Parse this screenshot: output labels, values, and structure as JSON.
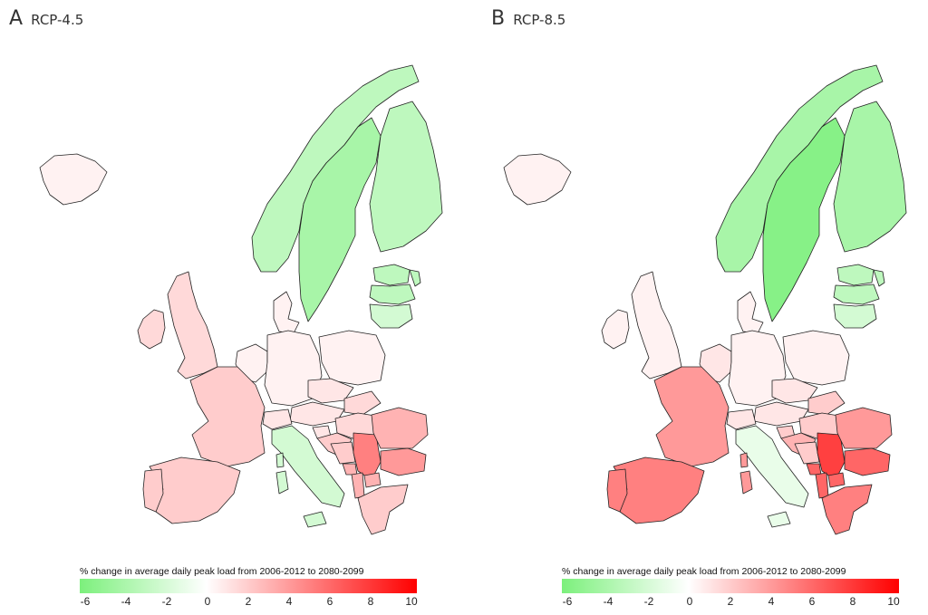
{
  "panels": [
    {
      "letter": "A",
      "title": "RCP-4.5",
      "regions": {
        "iceland": 0.5,
        "ireland": 1.5,
        "uk": 1.5,
        "norway": -3,
        "sweden": -4,
        "finland": -3,
        "baltics": -3,
        "estonia": -3,
        "latvia": -3,
        "lithuania": -2,
        "denmark": 0.5,
        "benelux": 0.5,
        "germany": 0.5,
        "poland": 0.5,
        "czech": 1,
        "slovakia": 1.5,
        "austria": 1,
        "switzerland": 1,
        "hungary": 1.5,
        "france": 2,
        "spain": 2,
        "portugal": 2,
        "italy": -2,
        "slovenia": 1,
        "croatia": 2,
        "bosnia": 2,
        "serbia": 5,
        "montenegro": 3,
        "macedonia": 3,
        "albania": 3,
        "romania": 3,
        "bulgaria": 4,
        "greece": 2,
        "sardinia": -2,
        "corsica": -2,
        "sicily": -2
      }
    },
    {
      "letter": "B",
      "title": "RCP-8.5",
      "regions": {
        "iceland": 0.5,
        "ireland": 0.5,
        "uk": 0.5,
        "norway": -4,
        "sweden": -5.5,
        "finland": -4,
        "baltics": -3,
        "estonia": -3,
        "latvia": -3,
        "lithuania": -2,
        "denmark": 0.5,
        "benelux": 1,
        "germany": 0.5,
        "poland": 0.5,
        "czech": 1,
        "slovakia": 2,
        "austria": 1,
        "switzerland": 1,
        "hungary": 2,
        "france": 4,
        "spain": 5,
        "portugal": 5,
        "italy": -1,
        "slovenia": 2,
        "croatia": 3,
        "bosnia": 2,
        "serbia": 7.5,
        "montenegro": 6,
        "macedonia": 6,
        "albania": 6,
        "romania": 4,
        "bulgaria": 6,
        "greece": 5,
        "sardinia": 4,
        "corsica": 4,
        "sicily": -1
      }
    }
  ],
  "legend": {
    "title": "% change in average daily peak load from 2006-2012 to 2080-2099",
    "min": -6,
    "max": 10,
    "ticks": [
      "-6",
      "-4",
      "-2",
      "0",
      "2",
      "4",
      "6",
      "8",
      "10"
    ],
    "colors": {
      "low": "#7CF07C",
      "mid": "#ffffff",
      "high": "#ff0000"
    }
  }
}
